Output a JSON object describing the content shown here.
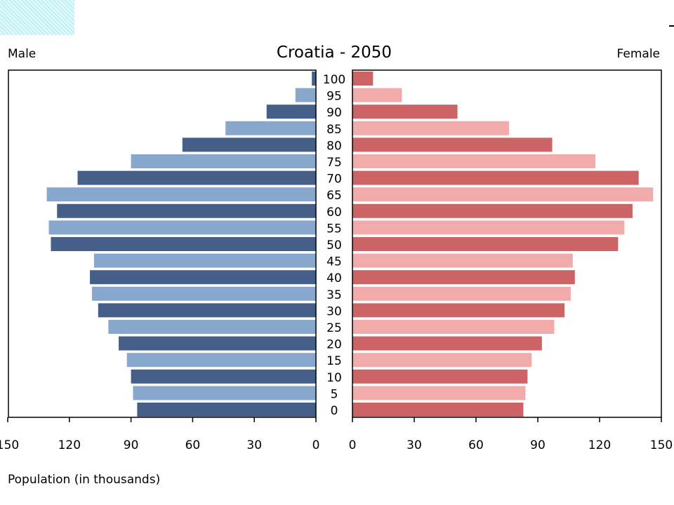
{
  "chart_data": {
    "type": "bar",
    "title": "Croatia - 2050",
    "left_label": "Male",
    "right_label": "Female",
    "xlabel": "Population (in thousands)",
    "xlim": [
      0,
      150
    ],
    "x_ticks": [
      0,
      30,
      60,
      90,
      120,
      150
    ],
    "categories": [
      "100",
      "95",
      "90",
      "85",
      "80",
      "75",
      "70",
      "65",
      "60",
      "55",
      "50",
      "45",
      "40",
      "35",
      "30",
      "25",
      "20",
      "15",
      "10",
      "5",
      "0"
    ],
    "series": [
      {
        "name": "Male",
        "values": [
          2,
          10,
          24,
          44,
          65,
          90,
          116,
          131,
          126,
          130,
          129,
          108,
          110,
          109,
          106,
          101,
          96,
          92,
          90,
          89,
          87
        ]
      },
      {
        "name": "Female",
        "values": [
          10,
          24,
          51,
          76,
          97,
          118,
          139,
          146,
          136,
          132,
          129,
          107,
          108,
          106,
          103,
          98,
          92,
          87,
          85,
          84,
          83
        ]
      }
    ],
    "colors": {
      "male_dark": "#465f89",
      "male_light": "#88a7cc",
      "female_dark": "#cc6365",
      "female_light": "#f2abab",
      "frame": "#000000"
    }
  }
}
